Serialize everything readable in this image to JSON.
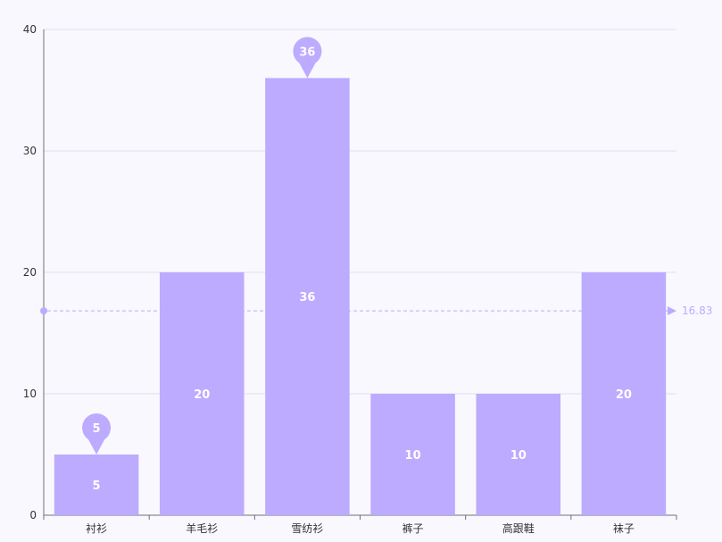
{
  "colors": {
    "bar": "#bcabff",
    "label": "#ffffff",
    "grid": "#e0dfea",
    "axis": "#6e7079",
    "tick_text": "#333333",
    "mean_line": "#bcabff",
    "background": "#f9f8fe"
  },
  "chart_data": {
    "type": "bar",
    "title": "",
    "xlabel": "",
    "ylabel": "",
    "categories": [
      "衬衫",
      "羊毛衫",
      "雪纺衫",
      "裤子",
      "高跟鞋",
      "袜子"
    ],
    "series": [
      {
        "values": [
          5,
          20,
          36,
          10,
          10,
          20
        ]
      }
    ],
    "ylim": [
      0,
      40
    ],
    "yticks": [
      "0",
      "10",
      "20",
      "30",
      "40"
    ],
    "grid": true,
    "data_labels": [
      "5",
      "20",
      "36",
      "10",
      "10",
      "20"
    ],
    "mark_points": [
      {
        "category": "衬衫",
        "value": 5,
        "label": "5"
      },
      {
        "category": "雪纺衫",
        "value": 36,
        "label": "36"
      }
    ],
    "mark_line": {
      "type": "average",
      "value": 16.83,
      "label": "16.83"
    }
  }
}
